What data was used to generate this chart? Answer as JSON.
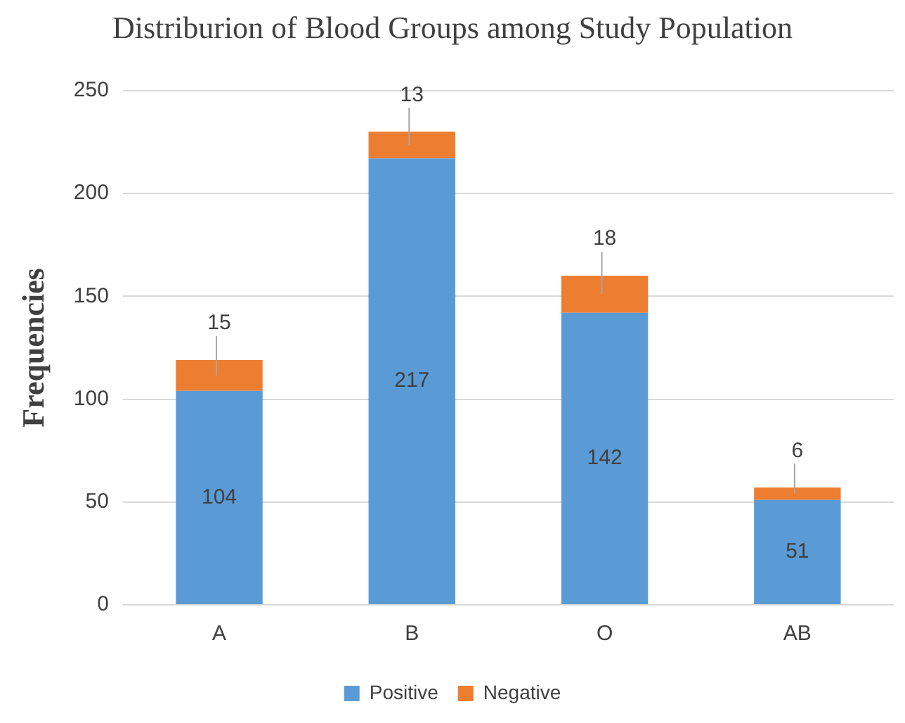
{
  "chart_data": {
    "type": "bar",
    "title": "Distriburion of Blood Groups among Study Population",
    "ylabel": "Frequencies",
    "categories": [
      "A",
      "B",
      "O",
      "AB"
    ],
    "series": [
      {
        "name": "Positive",
        "color": "#5b9bd5",
        "values": [
          104,
          217,
          142,
          51
        ]
      },
      {
        "name": "Negative",
        "color": "#ed7d31",
        "values": [
          15,
          13,
          18,
          6
        ]
      }
    ],
    "stacked": true,
    "ylim": [
      0,
      250
    ],
    "yticks": [
      0,
      50,
      100,
      150,
      200,
      250
    ],
    "grid": "y",
    "legend": "bottom",
    "data_labels": true
  }
}
